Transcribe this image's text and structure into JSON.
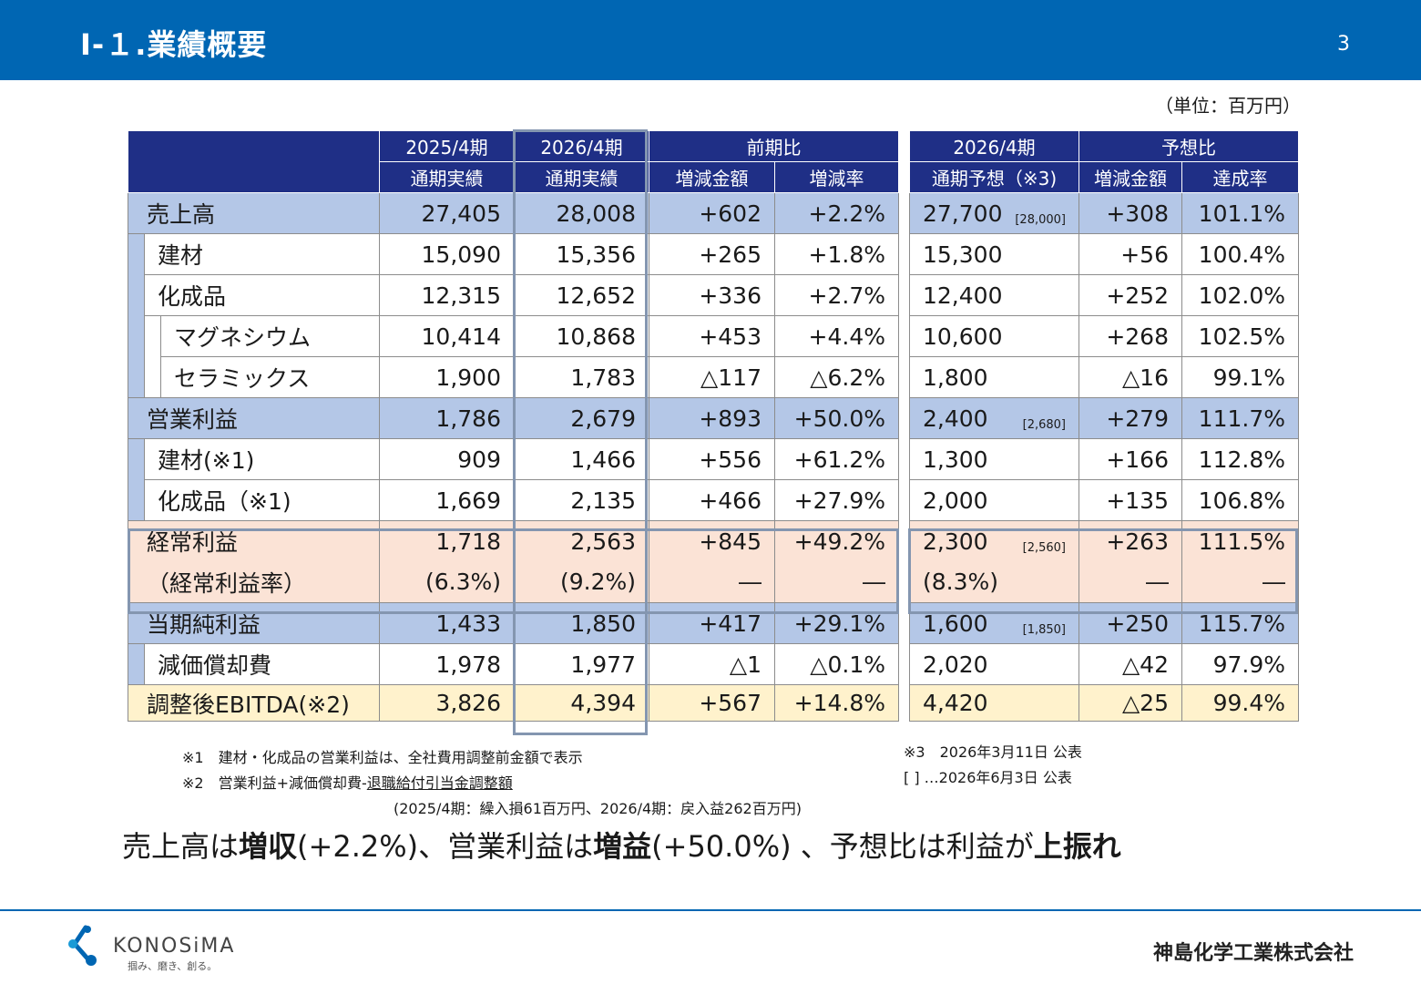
{
  "header": {
    "title": "Ⅰ-１.業績概要",
    "page": "3"
  },
  "unit": "（単位：百万円）",
  "table_left": {
    "headers": {
      "fy2025_line1": "2025/4期",
      "fy2025_line2": "通期実績",
      "fy2026_line1": "2026/4期",
      "fy2026_line2": "通期実績",
      "yoy": "前期比",
      "yoy_amount": "増減金額",
      "yoy_rate": "増減率"
    },
    "rows": [
      {
        "label": "売上高",
        "fy2025": "27,405",
        "fy2026": "28,008",
        "diff": "+602",
        "rate": "+2.2%"
      },
      {
        "label": "建材",
        "fy2025": "15,090",
        "fy2026": "15,356",
        "diff": "+265",
        "rate": "+1.8%"
      },
      {
        "label": "化成品",
        "fy2025": "12,315",
        "fy2026": "12,652",
        "diff": "+336",
        "rate": "+2.7%"
      },
      {
        "label": "マグネシウム",
        "fy2025": "10,414",
        "fy2026": "10,868",
        "diff": "+453",
        "rate": "+4.4%"
      },
      {
        "label": "セラミックス",
        "fy2025": "1,900",
        "fy2026": "1,783",
        "diff": "△117",
        "rate": "△6.2%"
      },
      {
        "label": "営業利益",
        "fy2025": "1,786",
        "fy2026": "2,679",
        "diff": "+893",
        "rate": "+50.0%"
      },
      {
        "label": "建材(※1)",
        "fy2025": "909",
        "fy2026": "1,466",
        "diff": "+556",
        "rate": "+61.2%"
      },
      {
        "label": "化成品（※1)",
        "fy2025": "1,669",
        "fy2026": "2,135",
        "diff": "+466",
        "rate": "+27.9%"
      },
      {
        "label": "経常利益",
        "fy2025": "1,718",
        "fy2026": "2,563",
        "diff": "+845",
        "rate": "+49.2%"
      },
      {
        "label": "（経常利益率）",
        "fy2025": "(6.3%)",
        "fy2026": "(9.2%)",
        "diff": "―",
        "rate": "―"
      },
      {
        "label": "当期純利益",
        "fy2025": "1,433",
        "fy2026": "1,850",
        "diff": "+417",
        "rate": "+29.1%"
      },
      {
        "label": "減価償却費",
        "fy2025": "1,978",
        "fy2026": "1,977",
        "diff": "△1",
        "rate": "△0.1%"
      },
      {
        "label": "調整後EBITDA(※2)",
        "fy2025": "3,826",
        "fy2026": "4,394",
        "diff": "+567",
        "rate": "+14.8%"
      }
    ]
  },
  "table_right": {
    "headers": {
      "forecast_line1": "2026/4期",
      "forecast_line2": "通期予想（※3)",
      "vs_forecast": "予想比",
      "vs_amount": "増減金額",
      "vs_rate": "達成率"
    },
    "rows": [
      {
        "forecast": "27,700",
        "bracket": "[28,000]",
        "diff": "+308",
        "rate": "101.1%"
      },
      {
        "forecast": "15,300",
        "bracket": "",
        "diff": "+56",
        "rate": "100.4%"
      },
      {
        "forecast": "12,400",
        "bracket": "",
        "diff": "+252",
        "rate": "102.0%"
      },
      {
        "forecast": "10,600",
        "bracket": "",
        "diff": "+268",
        "rate": "102.5%"
      },
      {
        "forecast": "1,800",
        "bracket": "",
        "diff": "△16",
        "rate": "99.1%"
      },
      {
        "forecast": "2,400",
        "bracket": "[2,680]",
        "diff": "+279",
        "rate": "111.7%"
      },
      {
        "forecast": "1,300",
        "bracket": "",
        "diff": "+166",
        "rate": "112.8%"
      },
      {
        "forecast": "2,000",
        "bracket": "",
        "diff": "+135",
        "rate": "106.8%"
      },
      {
        "forecast": "2,300",
        "bracket": "[2,560]",
        "diff": "+263",
        "rate": "111.5%"
      },
      {
        "forecast": "(8.3%)",
        "bracket": "",
        "diff": "―",
        "rate": "―"
      },
      {
        "forecast": "1,600",
        "bracket": "[1,850]",
        "diff": "+250",
        "rate": "115.7%"
      },
      {
        "forecast": "2,020",
        "bracket": "",
        "diff": "△42",
        "rate": "97.9%"
      },
      {
        "forecast": "4,420",
        "bracket": "",
        "diff": "△25",
        "rate": "99.4%"
      }
    ]
  },
  "notes_left": {
    "n1": "※1　建材・化成品の営業利益は、全社費用調整前金額で表示",
    "n2_prefix": "※2　営業利益+減価償却費-",
    "n2_underlined": "退職給付引当金調整額",
    "n3": "(2025/4期：繰入損61百万円、2026/4期：戻入益262百万円)"
  },
  "notes_right": {
    "n1": "※3　2026年3月11日 公表",
    "n2": "[ ] …2026年6月3日 公表"
  },
  "summary": {
    "p1": "売上高は",
    "b1": "増収",
    "p2": "(+2.2%)、営業利益は",
    "b2": "増益",
    "p3": "(+50.0%) 、予想比は利益が",
    "b3": "上振れ"
  },
  "footer": {
    "logo_word": "KONOSiMA",
    "logo_tagline": "掴み、磨き、創る。",
    "company": "神島化学工業株式会社"
  },
  "colors": {
    "header_blue": "#0066b3",
    "table_header_navy": "#1f2f86",
    "row_blue": "#b4c7e7",
    "row_pink": "#fbe3d6",
    "row_yellow": "#fff2cc"
  }
}
